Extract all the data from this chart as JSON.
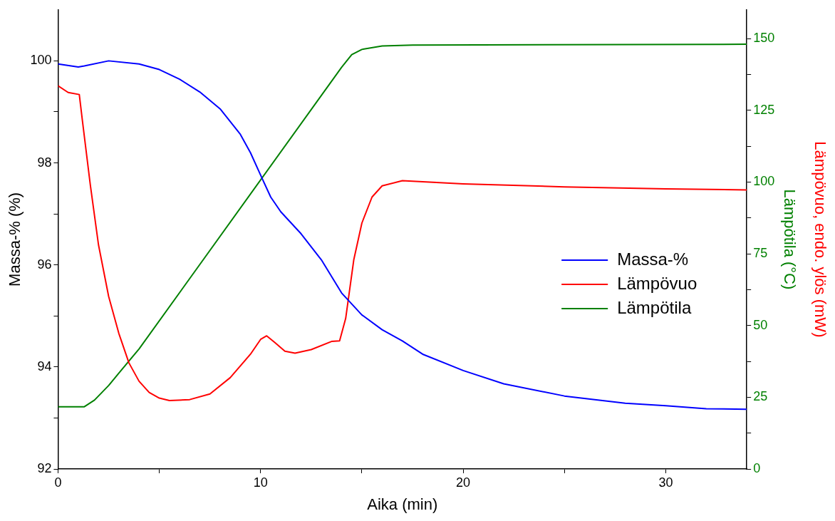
{
  "chart_data": {
    "type": "line",
    "xlabel": "Aika (min)",
    "ylabel": "Massa-% (%)",
    "y2label": "Lämpötila (°C)",
    "y3label": "Lämpövuo, endo. ylös (mW)",
    "xlim": [
      0,
      34
    ],
    "xticks": [
      0,
      {
        "value": 5,
        "label": null
      },
      10,
      {
        "value": 15,
        "label": null
      },
      20,
      {
        "value": 25,
        "label": null
      },
      30
    ],
    "ylim": [
      92,
      101
    ],
    "yticks": [
      92,
      {
        "value": 93,
        "label": null
      },
      94,
      {
        "value": 95,
        "label": null
      },
      96,
      {
        "value": 97,
        "label": null
      },
      98,
      {
        "value": 99,
        "label": null
      },
      100
    ],
    "y2lim": [
      0,
      160
    ],
    "y2ticks": [
      0,
      {
        "value": 12.5,
        "label": null
      },
      25,
      {
        "value": 37.5,
        "label": null
      },
      50,
      {
        "value": 62.5,
        "label": null
      },
      75,
      {
        "value": 87.5,
        "label": null
      },
      100,
      {
        "value": 112.5,
        "label": null
      },
      125,
      {
        "value": 137.5,
        "label": null
      },
      150
    ],
    "legend": "right",
    "marker": "none",
    "line_style": "solid",
    "series": [
      {
        "name": "Massa-%",
        "color": "#0000ff",
        "x": [
          0,
          1,
          1.3,
          2.5,
          4,
          5,
          6,
          7,
          8,
          9,
          9.5,
          10,
          10.5,
          11,
          12,
          13,
          14,
          15,
          16,
          17,
          18,
          20,
          22,
          25,
          28,
          30,
          32,
          34
        ],
        "values": [
          99.94,
          99.88,
          99.9,
          100.0,
          99.94,
          99.83,
          99.64,
          99.39,
          99.06,
          98.56,
          98.2,
          97.76,
          97.33,
          97.04,
          96.61,
          96.1,
          95.45,
          95.02,
          94.73,
          94.51,
          94.25,
          93.93,
          93.67,
          93.43,
          93.29,
          93.24,
          93.18,
          93.17
        ]
      },
      {
        "name": "Lämpövuo",
        "color": "#ff0000",
        "x": [
          0,
          0.5,
          1.05,
          1.2,
          1.6,
          2,
          2.5,
          3,
          3.5,
          4,
          4.5,
          5,
          5.5,
          6.5,
          7.5,
          8.5,
          9.5,
          10,
          10.3,
          10.7,
          11.2,
          11.7,
          12.5,
          13.5,
          13.9,
          14.2,
          14.6,
          15,
          15.5,
          16,
          17,
          18,
          20,
          25,
          30,
          34
        ],
        "values": [
          99.51,
          99.38,
          99.34,
          98.84,
          97.55,
          96.39,
          95.38,
          94.66,
          94.08,
          93.72,
          93.5,
          93.39,
          93.34,
          93.36,
          93.47,
          93.79,
          94.25,
          94.54,
          94.61,
          94.48,
          94.31,
          94.27,
          94.34,
          94.5,
          94.51,
          94.95,
          96.1,
          96.82,
          97.33,
          97.55,
          97.65,
          97.63,
          97.59,
          97.53,
          97.49,
          97.47
        ]
      },
      {
        "name": "Lämpötila",
        "color": "#008000",
        "axis": "y2",
        "x": [
          0,
          1.3,
          1.8,
          2.5,
          3,
          4,
          14,
          14.5,
          15,
          16,
          17.5,
          34
        ],
        "values": [
          21.7,
          21.7,
          24,
          29.1,
          33.4,
          41.8,
          140,
          144.4,
          146.2,
          147.4,
          147.7,
          148
        ]
      }
    ]
  }
}
